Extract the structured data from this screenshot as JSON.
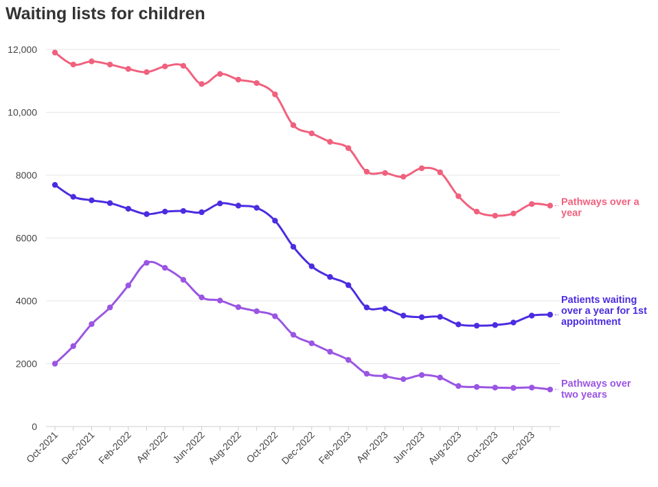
{
  "title": "Waiting lists for children",
  "chart_data": {
    "type": "line",
    "title": "Waiting lists for children",
    "xlabel": "",
    "ylabel": "",
    "ylim": [
      0,
      12000
    ],
    "yticks": [
      0,
      2000,
      4000,
      6000,
      8000,
      10000,
      12000
    ],
    "ytick_labels": [
      "0",
      "2000",
      "4000",
      "6000",
      "8000",
      "10,000",
      "12,000"
    ],
    "grid": true,
    "legend": "inline-right",
    "x": [
      "Oct-2021",
      "Nov-2021",
      "Dec-2021",
      "Jan-2022",
      "Feb-2022",
      "Mar-2022",
      "Apr-2022",
      "May-2022",
      "Jun-2022",
      "Jul-2022",
      "Aug-2022",
      "Sep-2022",
      "Oct-2022",
      "Nov-2022",
      "Dec-2022",
      "Jan-2023",
      "Feb-2023",
      "Mar-2023",
      "Apr-2023",
      "May-2023",
      "Jun-2023",
      "Jul-2023",
      "Aug-2023",
      "Sep-2023",
      "Oct-2023",
      "Nov-2023",
      "Dec-2023",
      "Jan-2024"
    ],
    "xtick_labels": [
      "Oct-2021",
      "Dec-2021",
      "Feb-2022",
      "Apr-2022",
      "Jun-2022",
      "Aug-2022",
      "Oct-2022",
      "Dec-2022",
      "Feb-2023",
      "Apr-2023",
      "Jun-2023",
      "Aug-2023",
      "Oct-2023",
      "Dec-2023"
    ],
    "series": [
      {
        "name": "Pathways over a year",
        "label_lines": [
          "Pathways over a",
          "year"
        ],
        "color": "#f0617e",
        "values": [
          11900,
          11520,
          11620,
          11520,
          11380,
          11280,
          11460,
          11480,
          10900,
          11220,
          11040,
          10930,
          10570,
          9590,
          9330,
          9060,
          8860,
          8110,
          8070,
          7950,
          8220,
          8090,
          7330,
          6840,
          6710,
          6780,
          7080,
          7030
        ]
      },
      {
        "name": "Patients waiting over a year for 1st appointment",
        "label_lines": [
          "Patients waiting",
          "over a year for 1st",
          "appointment"
        ],
        "color": "#4c2ce0",
        "values": [
          7690,
          7310,
          7200,
          7110,
          6930,
          6760,
          6840,
          6860,
          6820,
          7100,
          7030,
          6960,
          6550,
          5720,
          5100,
          4760,
          4500,
          3790,
          3750,
          3530,
          3480,
          3490,
          3250,
          3210,
          3230,
          3310,
          3530,
          3560
        ]
      },
      {
        "name": "Pathways over two years",
        "label_lines": [
          "Pathways over",
          "two years"
        ],
        "color": "#9a55e3",
        "values": [
          2000,
          2560,
          3260,
          3790,
          4490,
          5210,
          5050,
          4670,
          4110,
          4010,
          3800,
          3670,
          3510,
          2920,
          2650,
          2380,
          2120,
          1680,
          1600,
          1510,
          1640,
          1560,
          1290,
          1260,
          1240,
          1230,
          1240,
          1180
        ]
      }
    ]
  }
}
